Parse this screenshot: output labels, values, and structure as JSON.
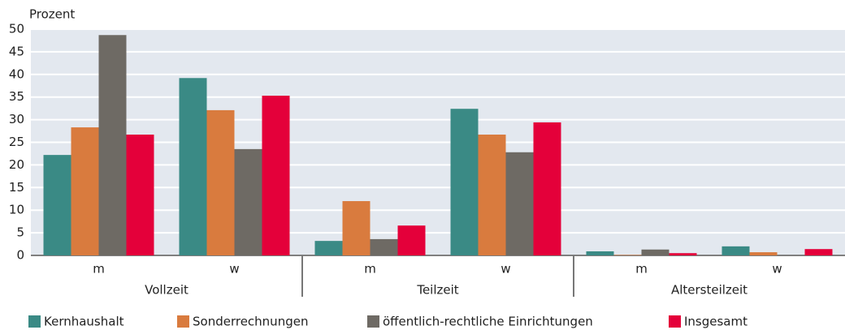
{
  "chart_data": {
    "type": "bar",
    "y_label": "Prozent",
    "categories": [
      "m",
      "w",
      "m",
      "w",
      "m",
      "w"
    ],
    "groups": [
      "Vollzeit",
      "Teilzeit",
      "Altersteilzeit"
    ],
    "series": [
      {
        "name": "Kernhaushalt",
        "color": "#3a8a85",
        "values": [
          22.2,
          39.2,
          3.2,
          32.4,
          0.9,
          2.0
        ]
      },
      {
        "name": "Sonderrechnungen",
        "color": "#d97b3e",
        "values": [
          28.3,
          32.1,
          12.0,
          26.7,
          0.1,
          0.7
        ]
      },
      {
        "name": "öffentlich-rechtliche Einrichtungen",
        "color": "#6e6a64",
        "values": [
          48.7,
          23.5,
          3.6,
          22.8,
          1.3,
          0
        ]
      },
      {
        "name": "Insgesamt",
        "color": "#e4003a",
        "values": [
          26.7,
          35.3,
          6.6,
          29.4,
          0.5,
          1.4
        ]
      }
    ],
    "ylim": [
      0,
      50
    ],
    "yticks": [
      0,
      5,
      10,
      15,
      20,
      25,
      30,
      35,
      40,
      45,
      50
    ],
    "grid": true
  }
}
